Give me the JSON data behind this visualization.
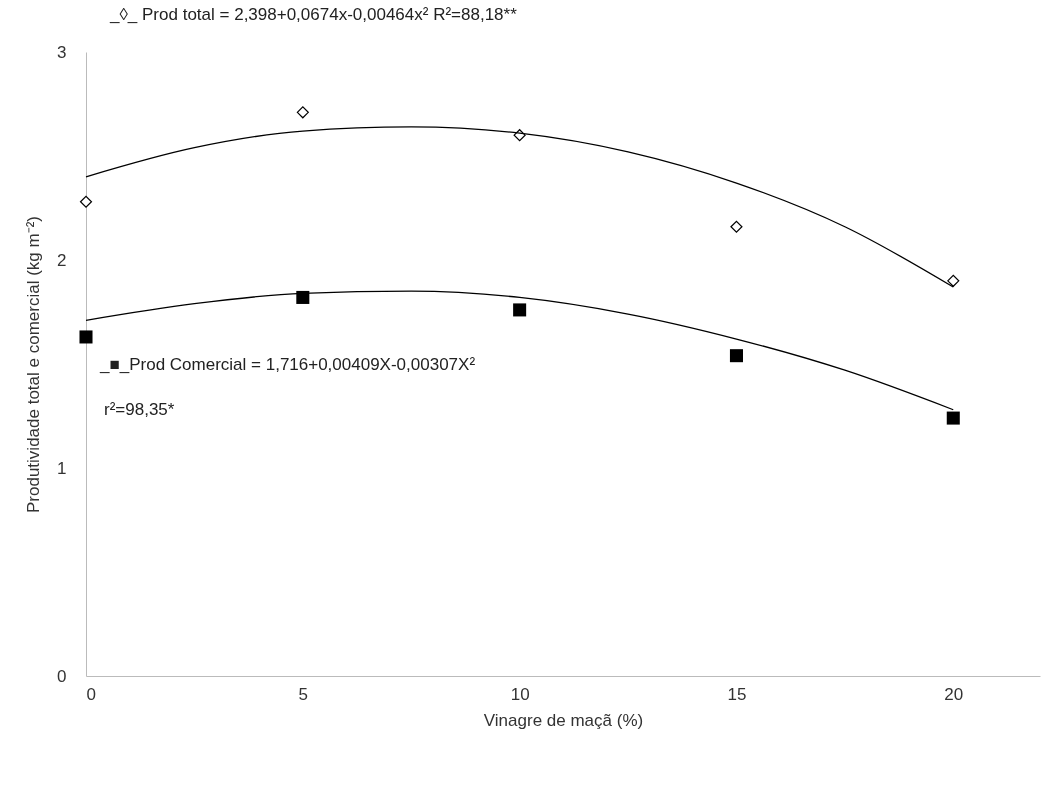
{
  "chart_data": {
    "type": "scatter",
    "xlabel": "Vinagre de maçã (%)",
    "ylabel": "Produtividade total e comercial (kg m⁻²)",
    "xlim": [
      0,
      22
    ],
    "xticks": [
      0,
      5,
      10,
      15,
      20
    ],
    "ylim": [
      0,
      3
    ],
    "yticks": [
      0,
      1,
      2,
      3
    ],
    "grid": false,
    "annotations": [
      "_◊_ Prod total = 2,398+0,0674x-0,00464x²  R²=88,18**",
      "_■_Prod Comercial = 1,716+0,00409X-0,00307X²",
      "r²=98,35*"
    ],
    "series": [
      {
        "type": "scatter",
        "marker": "diamond",
        "color": "#000000",
        "x": [
          0,
          5,
          10,
          15,
          20
        ],
        "values": [
          2.28,
          2.71,
          2.6,
          2.16,
          1.9
        ]
      },
      {
        "type": "scatter",
        "marker": "square",
        "color": "#000000",
        "x": [
          0,
          5,
          10,
          15,
          20
        ],
        "values": [
          1.63,
          1.82,
          1.76,
          1.54,
          1.24
        ]
      },
      {
        "type": "line",
        "marker": "none",
        "color": "#000000",
        "x": [
          0,
          2.5,
          5,
          7.5,
          10,
          12.5,
          15,
          17.5,
          20
        ],
        "values": [
          2.4,
          2.54,
          2.62,
          2.64,
          2.61,
          2.52,
          2.37,
          2.16,
          1.87
        ]
      },
      {
        "type": "line",
        "marker": "none",
        "color": "#000000",
        "x": [
          0,
          2.5,
          5,
          7.5,
          10,
          12.5,
          15,
          17.5,
          20
        ],
        "values": [
          1.71,
          1.79,
          1.84,
          1.85,
          1.82,
          1.74,
          1.62,
          1.47,
          1.28
        ]
      }
    ]
  }
}
